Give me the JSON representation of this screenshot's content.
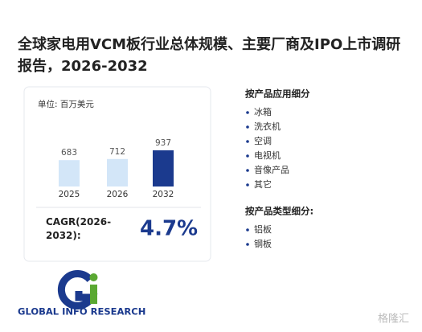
{
  "title": "全球家电用VCM板行业总体规模、主要厂商及IPO上市调研报告，2026-2032",
  "chart_data": {
    "type": "bar",
    "unit_label": "单位: 百万美元",
    "categories": [
      "2025",
      "2026",
      "2032"
    ],
    "values": [
      683,
      712,
      937
    ],
    "colors": [
      "#d3e6f8",
      "#d3e6f8",
      "#1b3a8e"
    ]
  },
  "cagr": {
    "label": "CAGR(2026-2032):",
    "value": "4.7%"
  },
  "segments": [
    {
      "heading": "按产品应用细分",
      "items": [
        "冰箱",
        "洗衣机",
        "空调",
        "电视机",
        "音像产品",
        "其它"
      ]
    },
    {
      "heading": "按产品类型细分:",
      "items": [
        "铝板",
        "钢板"
      ]
    }
  ],
  "logo_text": "GLOBAL INFO RESEARCH",
  "watermark": "格隆汇"
}
